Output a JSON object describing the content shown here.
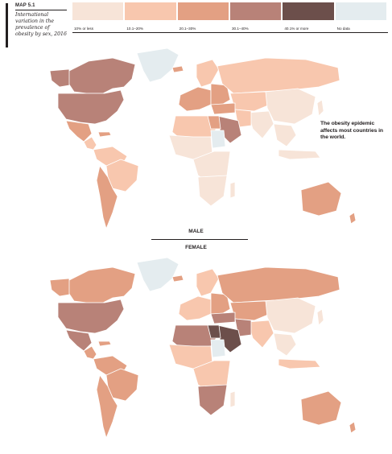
{
  "header": {
    "map_id": "MAP 5.1",
    "caption": "International variation in the prevalence of obesity by sex, 2016"
  },
  "legend": [
    {
      "label": "10% or less",
      "color": "#f7e4d8"
    },
    {
      "label": "10.1–20%",
      "color": "#f8c7ae"
    },
    {
      "label": "20.1–30%",
      "color": "#e3a083"
    },
    {
      "label": "30.1–40%",
      "color": "#b88278"
    },
    {
      "label": "40.1% or more",
      "color": "#6c4f4b"
    },
    {
      "label": "No data",
      "color": "#e4ecef"
    }
  ],
  "annotation": "The obesity epidemic affects most countries in the world.",
  "maps": {
    "male_label": "MALE",
    "female_label": "FEMALE"
  }
}
